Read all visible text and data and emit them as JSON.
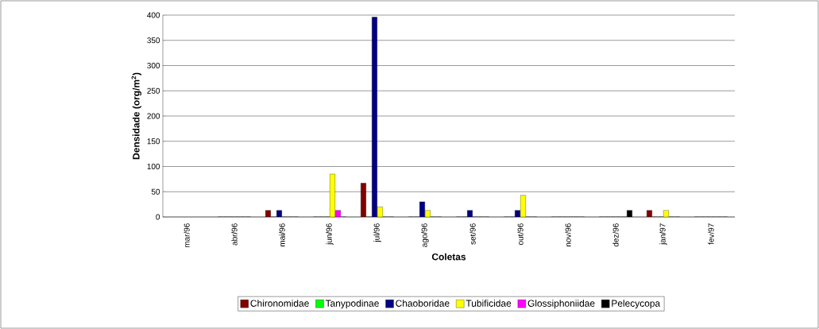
{
  "chart_data": {
    "type": "bar",
    "xlabel": "Coletas",
    "ylabel": "**Densidade (org/m$^{2}$)**",
    "categories": [
      "mar/96",
      "abr/96",
      "mai/96",
      "jun/96",
      "jul/96",
      "ago/96",
      "set/96",
      "out/96",
      "nov/96",
      "dez/96",
      "jan/97",
      "fev/97"
    ],
    "series": [
      {
        "name": "Chironomidae",
        "color": "#800000",
        "values": [
          null,
          0,
          13,
          0,
          67,
          0,
          0,
          0,
          0,
          0,
          13,
          0
        ]
      },
      {
        "name": "Tanypodinae",
        "color": "#00ff00",
        "values": [
          null,
          0,
          0,
          0,
          0,
          0,
          0,
          0,
          0,
          0,
          0,
          0
        ]
      },
      {
        "name": "Chaoboridae",
        "color": "#000080",
        "values": [
          null,
          0,
          13,
          0,
          396,
          30,
          13,
          13,
          0,
          0,
          0,
          0
        ]
      },
      {
        "name": "Tubificidae",
        "color": "#ffff00",
        "values": [
          null,
          0,
          0,
          85,
          20,
          13,
          0,
          43,
          0,
          0,
          13,
          0
        ]
      },
      {
        "name": "Glossiphoniidae",
        "color": "#ff00ff",
        "values": [
          null,
          0,
          0,
          13,
          0,
          0,
          0,
          0,
          0,
          0,
          0,
          0
        ]
      },
      {
        "name": "Pelecycopa",
        "color": "#000000",
        "values": [
          null,
          0,
          0,
          0,
          0,
          0,
          0,
          0,
          0,
          13,
          0,
          0
        ]
      }
    ],
    "ylim": [
      0,
      400
    ],
    "yticks": [
      0,
      50,
      100,
      150,
      200,
      250,
      300,
      350,
      400
    ],
    "grid": "y",
    "legend": "bottom"
  }
}
